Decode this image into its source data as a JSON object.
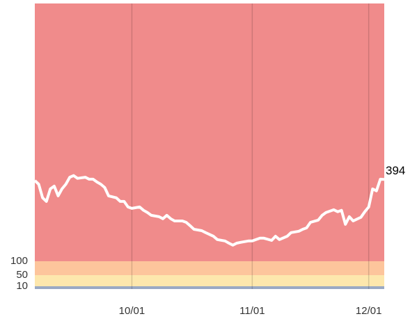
{
  "chart_data": {
    "type": "line",
    "x": [
      "09/06",
      "09/07",
      "09/08",
      "09/09",
      "09/10",
      "09/11",
      "09/12",
      "09/13",
      "09/14",
      "09/15",
      "09/16",
      "09/17",
      "09/19",
      "09/20",
      "09/21",
      "09/22",
      "09/23",
      "09/24",
      "09/25",
      "09/27",
      "09/28",
      "09/29",
      "09/30",
      "10/01",
      "10/03",
      "10/04",
      "10/05",
      "10/06",
      "10/08",
      "10/09",
      "10/10",
      "10/11",
      "10/12",
      "10/14",
      "10/15",
      "10/16",
      "10/17",
      "10/19",
      "10/20",
      "10/22",
      "10/23",
      "10/25",
      "10/26",
      "10/27",
      "10/28",
      "10/29",
      "10/31",
      "11/01",
      "11/02",
      "11/03",
      "11/04",
      "11/06",
      "11/07",
      "11/08",
      "11/10",
      "11/11",
      "11/13",
      "11/14",
      "11/15",
      "11/16",
      "11/18",
      "11/19",
      "11/20",
      "11/22",
      "11/23",
      "11/24",
      "11/25",
      "11/26",
      "11/27",
      "11/29",
      "11/30",
      "12/01",
      "12/02",
      "12/03",
      "12/04",
      "12/05"
    ],
    "series": [
      {
        "color": "#ffffff",
        "values": [
          390,
          377,
          328,
          315,
          360,
          370,
          335,
          360,
          377,
          402,
          408,
          398,
          402,
          395,
          395,
          385,
          377,
          365,
          335,
          328,
          315,
          315,
          295,
          290,
          295,
          283,
          275,
          265,
          260,
          253,
          265,
          253,
          245,
          245,
          240,
          228,
          215,
          210,
          203,
          190,
          178,
          173,
          165,
          158,
          165,
          168,
          173,
          173,
          178,
          183,
          183,
          175,
          190,
          178,
          190,
          203,
          208,
          215,
          220,
          240,
          248,
          265,
          275,
          285,
          278,
          283,
          233,
          260,
          245,
          258,
          278,
          295,
          360,
          353,
          395,
          394
        ]
      }
    ],
    "xlim": [
      "09/06",
      "12/05"
    ],
    "xticks": [
      "10/01",
      "11/01",
      "12/01"
    ],
    "ylim": [
      0,
      1027
    ],
    "yticks": [
      10,
      50,
      100
    ],
    "bands": [
      {
        "from": 0,
        "color": "#9aa9c4"
      },
      {
        "from": 10,
        "color": "#fde7ad"
      },
      {
        "from": 50,
        "color": "#fdc59c"
      },
      {
        "from": 100,
        "color": "#f08b8b"
      }
    ],
    "grid": true,
    "end_label": true
  }
}
